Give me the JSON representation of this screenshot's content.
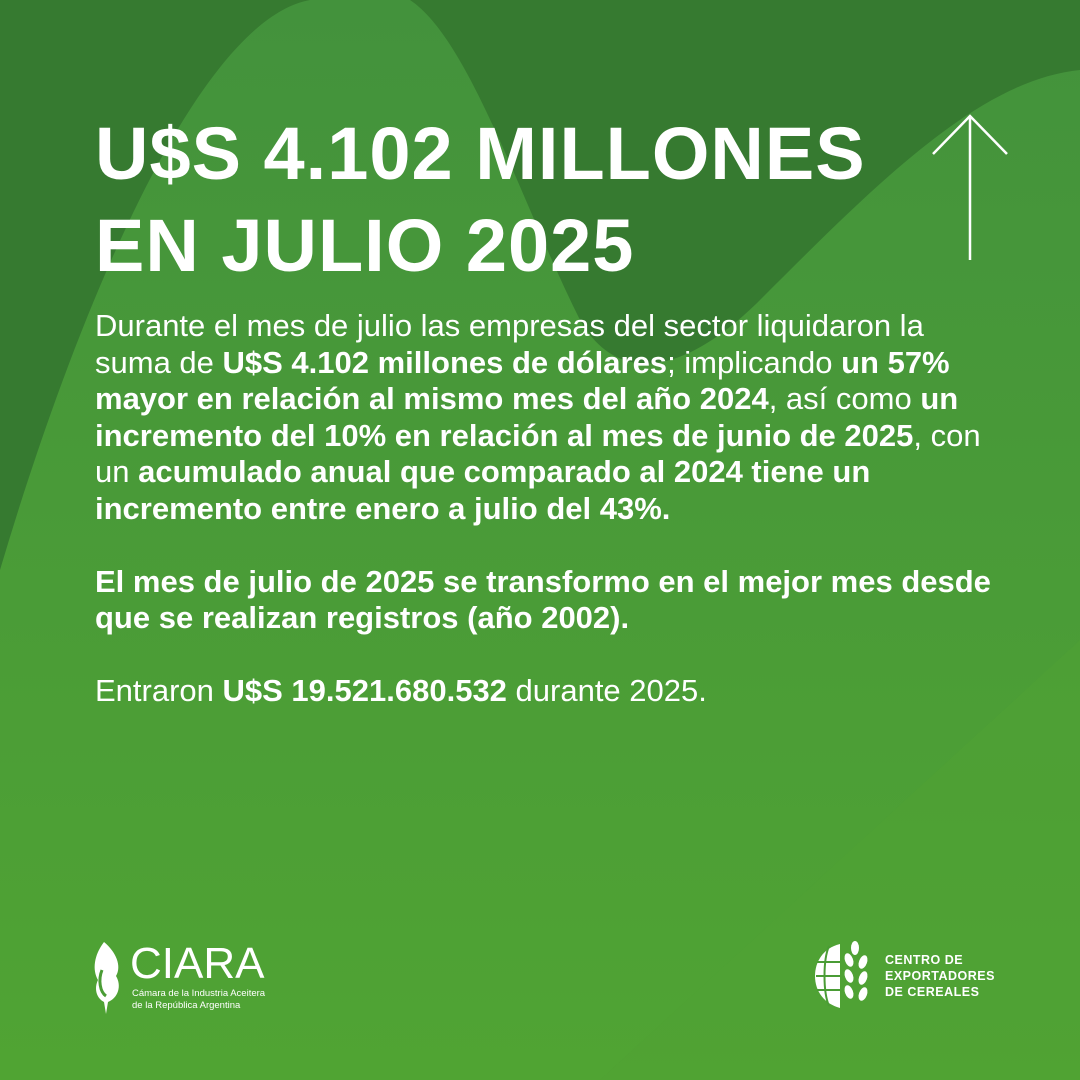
{
  "colors": {
    "background_top": "#367a30",
    "background_mid": "#43923c",
    "background_bottom": "#50a433",
    "text": "#ffffff"
  },
  "title": {
    "line1": "U$S 4.102 MILLONES",
    "line2": "EN JULIO 2025"
  },
  "icons": {
    "trend": "arrow-up-icon"
  },
  "paragraph1": [
    {
      "text": "Durante el mes de julio las empresas del sector liquidaron la suma de ",
      "bold": false
    },
    {
      "text": "U$S 4.102 millones de dólares",
      "bold": true
    },
    {
      "text": "; implicando ",
      "bold": false
    },
    {
      "text": "un 57% mayor en relación al mismo mes del año 2024",
      "bold": true
    },
    {
      "text": ", así como ",
      "bold": false
    },
    {
      "text": "un incremento del 10% en relación al mes de junio de 2025",
      "bold": true
    },
    {
      "text": ", con un ",
      "bold": false
    },
    {
      "text": "acumulado anual que comparado al 2024 tiene un incremento entre enero a julio del 43%.",
      "bold": true
    }
  ],
  "paragraph2": "El mes de julio de 2025 se transformo en el mejor mes desde que se realizan registros (año 2002).",
  "paragraph3": [
    {
      "text": "Entraron ",
      "bold": false
    },
    {
      "text": "U$S 19.521.680.532",
      "bold": true
    },
    {
      "text": " durante 2025.",
      "bold": false
    }
  ],
  "logos": {
    "ciara": {
      "name": "CIARA",
      "subtitle_line1": "Cámara de la Industria Aceitera",
      "subtitle_line2": "de la República Argentina"
    },
    "cec": {
      "line1": "CENTRO DE",
      "line2": "EXPORTADORES",
      "line3": "DE CEREALES"
    }
  }
}
